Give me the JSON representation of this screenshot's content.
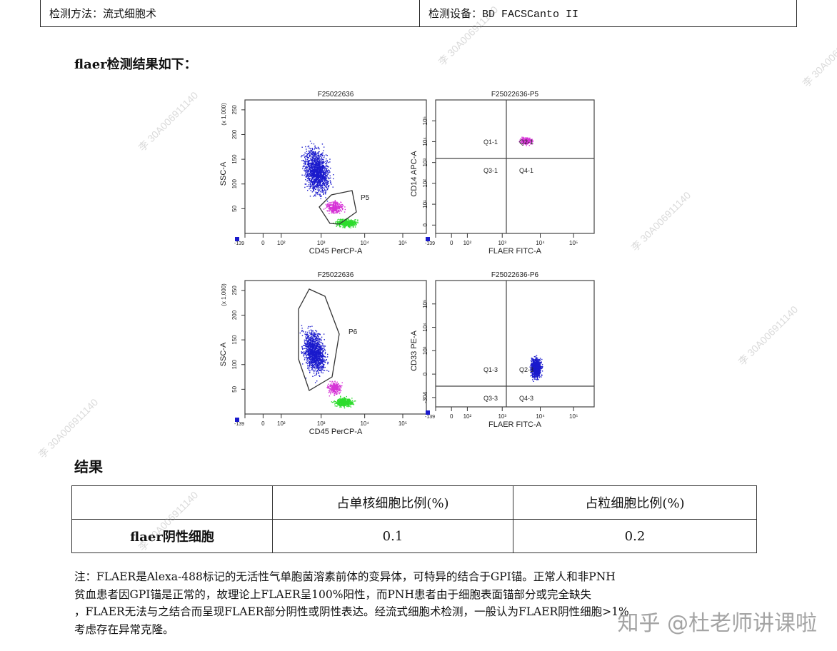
{
  "header": {
    "method": "检测方法：流式细胞术",
    "device": "检测设备：BD FACSCanto II"
  },
  "section_title": "flaer检测结果如下：",
  "plots": [
    {
      "title": "F25022636",
      "xlabel": "CD45 PerCP-A",
      "ylabel": "SSC-A",
      "yunit": "(x 1,000)",
      "yticks": [
        "50",
        "100",
        "150",
        "200",
        "250"
      ],
      "xticks": [
        "-139",
        "0",
        "10²",
        "10³",
        "10⁴",
        "10⁵"
      ],
      "gate": "P5"
    },
    {
      "title": "F25022636-P5",
      "xlabel": "FLAER FITC-A",
      "ylabel": "CD14 APC-A",
      "yticks": [
        "0",
        "10¹",
        "10²",
        "10³",
        "10⁴",
        "10⁵"
      ],
      "xticks": [
        "-139",
        "0",
        "10²",
        "10³",
        "10⁴",
        "10⁵"
      ],
      "quads": [
        "Q1-1",
        "Q2-1",
        "Q3-1",
        "Q4-1"
      ]
    },
    {
      "title": "F25022636",
      "xlabel": "CD45 PerCP-A",
      "ylabel": "SSC-A",
      "yunit": "(x 1,000)",
      "yticks": [
        "50",
        "100",
        "150",
        "200",
        "250"
      ],
      "xticks": [
        "-139",
        "0",
        "10²",
        "10³",
        "10⁴",
        "10⁵"
      ],
      "gate": "P6"
    },
    {
      "title": "F25022636-P6",
      "xlabel": "FLAER FITC-A",
      "ylabel": "CD33 PE-A",
      "yticks": [
        "-304",
        "0",
        "10³",
        "10⁴",
        "10⁵"
      ],
      "xticks": [
        "-139",
        "0",
        "10²",
        "10³",
        "10⁴",
        "10⁵"
      ],
      "quads": [
        "Q1-3",
        "Q2-3",
        "Q3-3",
        "Q4-3"
      ]
    }
  ],
  "result_title": "结果",
  "result_table": {
    "headers": [
      "",
      "占单核细胞比例(%)",
      "占粒细胞比例(%)"
    ],
    "row_label": "flaer阴性细胞",
    "values": [
      "0.1",
      "0.2"
    ]
  },
  "note": [
    "注：FLAER是Alexa-488标记的无活性气单胞菌溶素前体的变异体，可特异的结合于GPI锚。正常人和非PNH",
    "贫血患者因GPI锚是正常的，故理论上FLAER呈100%阳性，而PNH患者由于细胞表面锚部分或完全缺失",
    "，FLAER无法与之结合而呈现FLAER部分阴性或阴性表达。经流式细胞术检测，一般认为FLAER阴性细胞>1%",
    "考虑存在异常克隆。"
  ],
  "watermark": "李 30A006911140",
  "zhihu_mark": "知乎 @杜老师讲课啦",
  "colors": {
    "mono": "#1a1acc",
    "granulo": "#2ddc2d",
    "gateP5": "#d633d6"
  }
}
